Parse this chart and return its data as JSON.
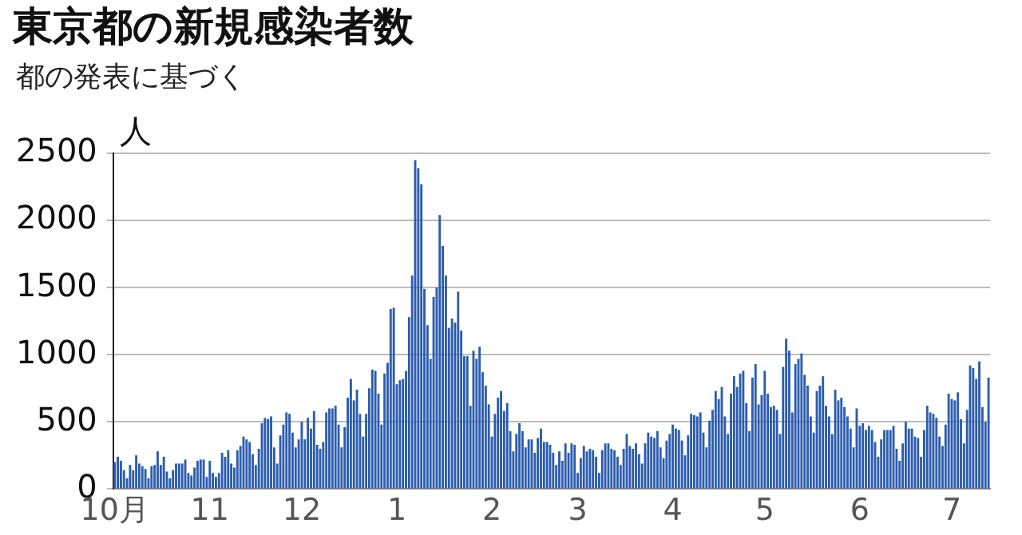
{
  "chart_data": {
    "type": "bar",
    "title": "東京都の新規感染者数",
    "subtitle": "都の発表に基づく",
    "ylabel": "人",
    "color": "#2b5cad",
    "categories": [
      "10月",
      null,
      null,
      null,
      null,
      null,
      null,
      null,
      null,
      null,
      null,
      null,
      null,
      null,
      null,
      null,
      null,
      null,
      null,
      null,
      null,
      null,
      null,
      null,
      null,
      null,
      null,
      null,
      null,
      null,
      null,
      "11",
      null,
      null,
      null,
      null,
      null,
      null,
      null,
      null,
      null,
      null,
      null,
      null,
      null,
      null,
      null,
      null,
      null,
      null,
      null,
      null,
      null,
      null,
      null,
      null,
      null,
      null,
      null,
      null,
      null,
      "12",
      null,
      null,
      null,
      null,
      null,
      null,
      null,
      null,
      null,
      null,
      null,
      null,
      null,
      null,
      null,
      null,
      null,
      null,
      null,
      null,
      null,
      null,
      null,
      null,
      null,
      null,
      null,
      null,
      null,
      null,
      "1",
      null,
      null,
      null,
      null,
      null,
      null,
      null,
      null,
      null,
      null,
      null,
      null,
      null,
      null,
      null,
      null,
      null,
      null,
      null,
      null,
      null,
      null,
      null,
      null,
      null,
      null,
      null,
      null,
      null,
      null,
      "2",
      null,
      null,
      null,
      null,
      null,
      null,
      null,
      null,
      null,
      null,
      null,
      null,
      null,
      null,
      null,
      null,
      null,
      null,
      null,
      null,
      null,
      null,
      null,
      null,
      null,
      null,
      null,
      "3",
      null,
      null,
      null,
      null,
      null,
      null,
      null,
      null,
      null,
      null,
      null,
      null,
      null,
      null,
      null,
      null,
      null,
      null,
      null,
      null,
      null,
      null,
      null,
      null,
      null,
      null,
      null,
      null,
      null,
      null,
      "4",
      null,
      null,
      null,
      null,
      null,
      null,
      null,
      null,
      null,
      null,
      null,
      null,
      null,
      null,
      null,
      null,
      null,
      null,
      null,
      null,
      null,
      null,
      null,
      null,
      null,
      null,
      null,
      null,
      null,
      "5",
      null,
      null,
      null,
      null,
      null,
      null,
      null,
      null,
      null,
      null,
      null,
      null,
      null,
      null,
      null,
      null,
      null,
      null,
      null,
      null,
      null,
      null,
      null,
      null,
      null,
      null,
      null,
      null,
      null,
      null,
      "6",
      null,
      null,
      null,
      null,
      null,
      null,
      null,
      null,
      null,
      null,
      null,
      null,
      null,
      null,
      null,
      null,
      null,
      null,
      null,
      null,
      null,
      null,
      null,
      null,
      null,
      null,
      null,
      null,
      null,
      "7",
      null,
      null,
      null,
      null,
      null,
      null,
      null,
      null,
      null,
      null,
      null,
      null
    ],
    "values": [
      200,
      240,
      210,
      140,
      80,
      180,
      140,
      250,
      190,
      170,
      150,
      80,
      170,
      180,
      280,
      180,
      240,
      130,
      80,
      140,
      190,
      190,
      190,
      220,
      120,
      100,
      160,
      210,
      220,
      220,
      90,
      210,
      120,
      90,
      120,
      270,
      240,
      290,
      190,
      160,
      290,
      320,
      390,
      370,
      350,
      260,
      180,
      300,
      490,
      530,
      520,
      540,
      310,
      190,
      400,
      480,
      570,
      560,
      420,
      310,
      370,
      500,
      370,
      530,
      450,
      580,
      330,
      300,
      350,
      570,
      600,
      600,
      620,
      480,
      310,
      460,
      680,
      820,
      660,
      740,
      560,
      390,
      560,
      750,
      890,
      880,
      710,
      480,
      860,
      940,
      1340,
      1350,
      780,
      810,
      820,
      880,
      1280,
      1590,
      2450,
      2390,
      2270,
      1490,
      1220,
      970,
      1430,
      1500,
      2040,
      1810,
      1590,
      1200,
      1270,
      1240,
      1470,
      1180,
      990,
      990,
      620,
      1030,
      970,
      1060,
      870,
      770,
      630,
      390,
      560,
      680,
      730,
      580,
      640,
      430,
      280,
      410,
      490,
      430,
      310,
      370,
      370,
      270,
      380,
      450,
      350,
      350,
      330,
      270,
      180,
      280,
      210,
      340,
      270,
      340,
      330,
      120,
      230,
      320,
      280,
      300,
      290,
      240,
      120,
      290,
      340,
      340,
      300,
      290,
      240,
      180,
      300,
      410,
      320,
      300,
      340,
      260,
      190,
      340,
      420,
      390,
      380,
      430,
      310,
      230,
      360,
      410,
      480,
      450,
      440,
      360,
      250,
      400,
      560,
      550,
      540,
      570,
      420,
      310,
      510,
      590,
      730,
      670,
      760,
      540,
      410,
      710,
      840,
      760,
      860,
      880,
      640,
      430,
      830,
      930,
      630,
      700,
      880,
      710,
      610,
      620,
      590,
      410,
      910,
      1120,
      1030,
      570,
      930,
      970,
      1010,
      850,
      770,
      540,
      420,
      730,
      770,
      840,
      620,
      540,
      410,
      740,
      660,
      680,
      610,
      540,
      450,
      310,
      600,
      470,
      490,
      440,
      470,
      440,
      350,
      240,
      370,
      440,
      440,
      440,
      470,
      300,
      210,
      340,
      500,
      450,
      450,
      390,
      380,
      240,
      440,
      620,
      570,
      560,
      530,
      390,
      320,
      480,
      710,
      670,
      660,
      720,
      520,
      340,
      590,
      920,
      900,
      820,
      950,
      610,
      500,
      830
    ],
    "ylim": [
      0,
      2500
    ],
    "yticks": [
      0,
      500,
      1000,
      1500,
      2000,
      2500
    ],
    "grid": "y",
    "legend": false
  }
}
